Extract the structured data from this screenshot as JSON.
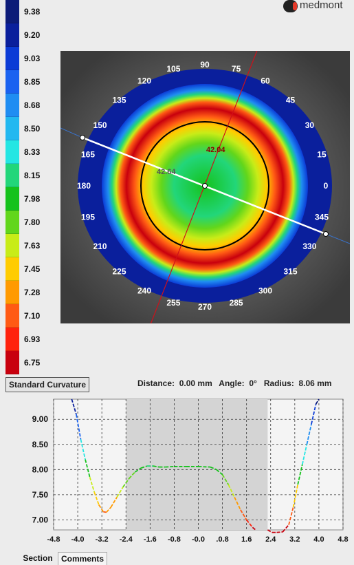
{
  "brand": {
    "name": "medmont"
  },
  "legend": {
    "values": [
      "9.38",
      "9.20",
      "9.03",
      "8.85",
      "8.68",
      "8.50",
      "8.33",
      "8.15",
      "7.98",
      "7.80",
      "7.63",
      "7.45",
      "7.28",
      "7.10",
      "6.93",
      "6.75"
    ],
    "colors": [
      "#0c1b78",
      "#0a1f9c",
      "#0b3bd6",
      "#1a62f0",
      "#1f8df2",
      "#22b8f0",
      "#24e6e3",
      "#22d67a",
      "#15c21c",
      "#62d61b",
      "#c8ec18",
      "#ffcc00",
      "#ff9a00",
      "#ff5a14",
      "#ff220d",
      "#c8000e"
    ]
  },
  "map": {
    "axis_labels": [
      "0",
      "15",
      "30",
      "45",
      "60",
      "75",
      "90",
      "105",
      "120",
      "135",
      "150",
      "165",
      "180",
      "195",
      "210",
      "225",
      "240",
      "255",
      "270",
      "285",
      "300",
      "315",
      "330",
      "345"
    ],
    "marker_values": [
      "42.04",
      "42.64"
    ]
  },
  "map_mode_button": "Standard Curvature",
  "readouts": {
    "distance_label": "Distance:",
    "distance_value": "0.00 mm",
    "angle_label": "Angle:",
    "angle_value": "0°",
    "radius_label": "Radius:",
    "radius_value": "8.06 mm"
  },
  "tabs": [
    "Section",
    "Comments"
  ],
  "chart_data": {
    "type": "line",
    "x_ticks": [
      "-4.8",
      "-4.0",
      "-3.2",
      "-2.4",
      "-1.6",
      "-0.8",
      "-0.0",
      ".0.8",
      "1.6",
      "2.4",
      "3.2",
      "4.0",
      "4.8"
    ],
    "y_ticks": [
      "9.00",
      "8.50",
      "8.00",
      "7.50",
      "7.00"
    ],
    "xlim": [
      -4.8,
      4.8
    ],
    "ylim": [
      6.8,
      9.4
    ],
    "shaded_x": [
      -2.4,
      2.3
    ],
    "series": [
      {
        "x": [
          -4.2,
          -4.05,
          -3.9,
          -3.75,
          -3.6,
          -3.45,
          -3.3,
          -3.15,
          -3.05,
          -2.9,
          -2.7,
          -2.5,
          -2.3,
          -2.1,
          -1.9,
          -1.7,
          -1.5,
          -1.3,
          -1.1,
          -0.8,
          -0.4,
          0.0,
          0.4,
          0.6,
          0.8,
          1.0,
          1.2,
          1.4,
          1.6,
          1.8,
          1.9
        ],
        "y": [
          9.4,
          9.1,
          8.6,
          8.2,
          7.85,
          7.55,
          7.3,
          7.16,
          7.15,
          7.25,
          7.45,
          7.65,
          7.82,
          7.95,
          8.03,
          8.07,
          8.07,
          8.05,
          8.05,
          8.06,
          8.06,
          8.06,
          8.05,
          8.0,
          7.9,
          7.7,
          7.45,
          7.2,
          7.0,
          6.85,
          6.8
        ]
      },
      {
        "x": [
          2.3,
          2.45,
          2.6,
          2.8,
          3.0,
          3.15,
          3.3,
          3.45,
          3.6,
          3.75,
          3.9,
          4.0
        ],
        "y": [
          6.8,
          6.75,
          6.75,
          6.76,
          6.9,
          7.25,
          7.7,
          8.1,
          8.5,
          8.9,
          9.3,
          9.4
        ]
      }
    ]
  }
}
